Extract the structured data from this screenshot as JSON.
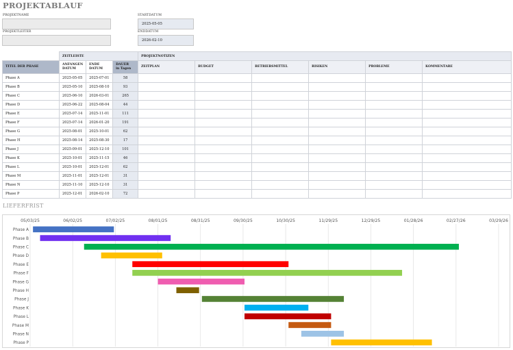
{
  "page": {
    "title": "PROJEKTABLAUF",
    "labels": {
      "project_name": "PROJEKTNAME",
      "start_date": "STARTDATUM",
      "project_lead": "PROJEKTLEITER",
      "end_date": "ENDDATUM"
    },
    "fields": {
      "project_name": "",
      "project_lead": "",
      "start_date": "2025-05-05",
      "end_date": "2026-02-10"
    },
    "table": {
      "group_timeline": "ZEITLEISTE",
      "group_notes": "PROJEKTNOTIZEN",
      "col_phase": "TITEL DER PHASE",
      "col_start_1": "ANFANGEN",
      "col_start_2": "DATUM",
      "col_end_1": "ENDE",
      "col_end_2": "DATUM",
      "col_dur_1": "DAUER",
      "col_dur_2": "in Tagen",
      "notes_cols": [
        "ZEITPLAN",
        "BUDGET",
        "BETRIEBSMITTEL",
        "RISIKEN",
        "PROBLEME",
        "KOMMENTARE"
      ],
      "rows": [
        {
          "phase": "Phase A",
          "start": "2025-05-05",
          "end": "2025-07-01",
          "dur": "58"
        },
        {
          "phase": "Phase B",
          "start": "2025-05-10",
          "end": "2025-08-10",
          "dur": "93"
        },
        {
          "phase": "Phase C",
          "start": "2025-06-10",
          "end": "2026-03-01",
          "dur": "265"
        },
        {
          "phase": "Phase D",
          "start": "2025-06-22",
          "end": "2025-08-04",
          "dur": "44"
        },
        {
          "phase": "Phase E",
          "start": "2025-07-14",
          "end": "2025-11-01",
          "dur": "111"
        },
        {
          "phase": "Phase F",
          "start": "2025-07-14",
          "end": "2026-01-20",
          "dur": "191"
        },
        {
          "phase": "Phase G",
          "start": "2025-08-01",
          "end": "2025-10-01",
          "dur": "62"
        },
        {
          "phase": "Phase H",
          "start": "2025-08-14",
          "end": "2025-08-30",
          "dur": "17"
        },
        {
          "phase": "Phase J",
          "start": "2025-09-01",
          "end": "2025-12-10",
          "dur": "101"
        },
        {
          "phase": "Phase K",
          "start": "2025-10-01",
          "end": "2025-11-15",
          "dur": "46"
        },
        {
          "phase": "Phase L",
          "start": "2025-10-01",
          "end": "2025-12-01",
          "dur": "62"
        },
        {
          "phase": "Phase M",
          "start": "2025-11-01",
          "end": "2025-12-01",
          "dur": "31"
        },
        {
          "phase": "Phase N",
          "start": "2025-11-10",
          "end": "2025-12-10",
          "dur": "31"
        },
        {
          "phase": "Phase P",
          "start": "2025-12-01",
          "end": "2026-02-10",
          "dur": "72"
        }
      ]
    },
    "gantt_title": "LIEFERFRIST"
  },
  "chart_data": {
    "type": "bar",
    "orientation": "horizontal-gantt",
    "categories": [
      "Phase A",
      "Phase B",
      "Phase C",
      "Phase D",
      "Phase E",
      "Phase F",
      "Phase G",
      "Phase H",
      "Phase J",
      "Phase K",
      "Phase L",
      "Phase M",
      "Phase N",
      "Phase P"
    ],
    "start": [
      "2025-05-05",
      "2025-05-10",
      "2025-06-10",
      "2025-06-22",
      "2025-07-14",
      "2025-07-14",
      "2025-08-01",
      "2025-08-14",
      "2025-09-01",
      "2025-10-01",
      "2025-10-01",
      "2025-11-01",
      "2025-11-10",
      "2025-12-01"
    ],
    "end": [
      "2025-07-01",
      "2025-08-10",
      "2026-03-01",
      "2025-08-04",
      "2025-11-01",
      "2026-01-20",
      "2025-10-01",
      "2025-08-30",
      "2025-12-10",
      "2025-11-15",
      "2025-12-01",
      "2025-12-01",
      "2025-12-10",
      "2026-02-10"
    ],
    "colors": [
      "#4472c4",
      "#7030f0",
      "#00b050",
      "#ffc000",
      "#ff0000",
      "#92d050",
      "#ef5db0",
      "#7f6000",
      "#548235",
      "#00b0f0",
      "#c00000",
      "#c55a11",
      "#9dc3e6",
      "#ffc000"
    ],
    "x_tick_labels": [
      "05/03/25",
      "06/02/25",
      "07/02/25",
      "08/01/25",
      "08/31/25",
      "09/30/25",
      "10/30/25",
      "11/29/25",
      "12/29/25",
      "01/28/26",
      "02/27/26",
      "03/29/26"
    ],
    "x_tick_dates": [
      "2025-05-03",
      "2025-06-02",
      "2025-07-02",
      "2025-08-01",
      "2025-08-31",
      "2025-09-30",
      "2025-10-30",
      "2025-11-29",
      "2025-12-29",
      "2026-01-28",
      "2026-02-27",
      "2026-03-29"
    ],
    "xlim": [
      "2025-05-03",
      "2026-03-29"
    ],
    "grid": true,
    "legend": "none"
  }
}
